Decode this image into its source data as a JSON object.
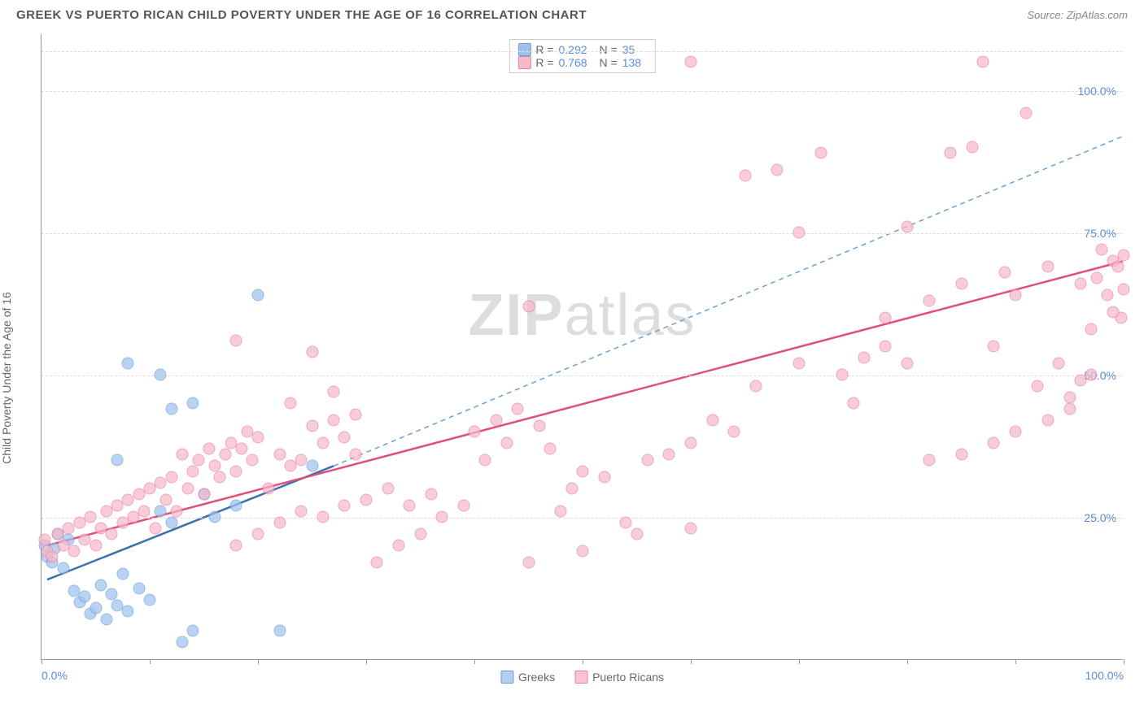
{
  "title": "GREEK VS PUERTO RICAN CHILD POVERTY UNDER THE AGE OF 16 CORRELATION CHART",
  "source_label": "Source:",
  "source_name": "ZipAtlas.com",
  "ylabel": "Child Poverty Under the Age of 16",
  "watermark_bold": "ZIP",
  "watermark_rest": "atlas",
  "chart": {
    "type": "scatter",
    "xlim": [
      0,
      100
    ],
    "ylim": [
      0,
      110
    ],
    "xtick_positions": [
      0,
      10,
      20,
      30,
      40,
      50,
      60,
      70,
      80,
      90,
      100
    ],
    "xtick_labels": {
      "0": "0.0%",
      "100": "100.0%"
    },
    "ytick_positions": [
      25,
      50,
      75,
      100
    ],
    "ytick_labels": [
      "25.0%",
      "50.0%",
      "75.0%",
      "100.0%"
    ],
    "grid_color": "#dddddd",
    "axis_color": "#999999",
    "tick_label_color": "#5b8dd6",
    "background_color": "#ffffff",
    "marker_size": 15,
    "marker_opacity": 0.35,
    "series": [
      {
        "name": "Greeks",
        "fill_color": "#9ec1ed",
        "stroke_color": "#6a9fd8",
        "R": "0.292",
        "N": "35",
        "trend_solid": {
          "x1": 0.5,
          "y1": 14,
          "x2": 27,
          "y2": 34,
          "color": "#3a6fb0",
          "width": 2.5
        },
        "trend_dashed": {
          "x1": 27,
          "y1": 34,
          "x2": 100,
          "y2": 92,
          "color": "#6a9fd8",
          "width": 1.5
        },
        "points": [
          [
            0.3,
            20
          ],
          [
            0.5,
            18
          ],
          [
            1,
            17
          ],
          [
            1.2,
            19.5
          ],
          [
            1.5,
            22
          ],
          [
            2,
            16
          ],
          [
            2.5,
            21
          ],
          [
            3,
            12
          ],
          [
            3.5,
            10
          ],
          [
            4,
            11
          ],
          [
            4.5,
            8
          ],
          [
            5,
            9
          ],
          [
            5.5,
            13
          ],
          [
            6,
            7
          ],
          [
            6.5,
            11.5
          ],
          [
            7,
            9.5
          ],
          [
            7.5,
            15
          ],
          [
            8,
            8.5
          ],
          [
            9,
            12.5
          ],
          [
            10,
            10.5
          ],
          [
            11,
            26
          ],
          [
            12,
            24
          ],
          [
            13,
            3
          ],
          [
            14,
            5
          ],
          [
            15,
            29
          ],
          [
            16,
            25
          ],
          [
            18,
            27
          ],
          [
            11,
            50
          ],
          [
            12,
            44
          ],
          [
            8,
            52
          ],
          [
            7,
            35
          ],
          [
            14,
            45
          ],
          [
            20,
            64
          ],
          [
            22,
            5
          ],
          [
            25,
            34
          ]
        ]
      },
      {
        "name": "Puerto Ricans",
        "fill_color": "#f7b9c8",
        "stroke_color": "#e97fa0",
        "R": "0.768",
        "N": "138",
        "trend_solid": {
          "x1": 0.5,
          "y1": 20,
          "x2": 100,
          "y2": 70,
          "color": "#e04f7a",
          "width": 2.5
        },
        "trend_dashed": null,
        "points": [
          [
            0.3,
            21
          ],
          [
            0.5,
            19
          ],
          [
            1,
            18
          ],
          [
            1.5,
            22
          ],
          [
            2,
            20
          ],
          [
            2.5,
            23
          ],
          [
            3,
            19
          ],
          [
            3.5,
            24
          ],
          [
            4,
            21
          ],
          [
            4.5,
            25
          ],
          [
            5,
            20
          ],
          [
            5.5,
            23
          ],
          [
            6,
            26
          ],
          [
            6.5,
            22
          ],
          [
            7,
            27
          ],
          [
            7.5,
            24
          ],
          [
            8,
            28
          ],
          [
            8.5,
            25
          ],
          [
            9,
            29
          ],
          [
            9.5,
            26
          ],
          [
            10,
            30
          ],
          [
            10.5,
            23
          ],
          [
            11,
            31
          ],
          [
            11.5,
            28
          ],
          [
            12,
            32
          ],
          [
            12.5,
            26
          ],
          [
            13,
            36
          ],
          [
            13.5,
            30
          ],
          [
            14,
            33
          ],
          [
            14.5,
            35
          ],
          [
            15,
            29
          ],
          [
            15.5,
            37
          ],
          [
            16,
            34
          ],
          [
            16.5,
            32
          ],
          [
            17,
            36
          ],
          [
            17.5,
            38
          ],
          [
            18,
            33
          ],
          [
            18.5,
            37
          ],
          [
            19,
            40
          ],
          [
            19.5,
            35
          ],
          [
            20,
            39
          ],
          [
            21,
            30
          ],
          [
            22,
            36
          ],
          [
            23,
            34
          ],
          [
            24,
            35
          ],
          [
            25,
            41
          ],
          [
            26,
            38
          ],
          [
            27,
            42
          ],
          [
            28,
            39
          ],
          [
            29,
            36
          ],
          [
            18,
            20
          ],
          [
            20,
            22
          ],
          [
            22,
            24
          ],
          [
            24,
            26
          ],
          [
            26,
            25
          ],
          [
            28,
            27
          ],
          [
            30,
            28
          ],
          [
            32,
            30
          ],
          [
            34,
            27
          ],
          [
            36,
            29
          ],
          [
            18,
            56
          ],
          [
            25,
            54
          ],
          [
            23,
            45
          ],
          [
            27,
            47
          ],
          [
            29,
            43
          ],
          [
            31,
            17
          ],
          [
            33,
            20
          ],
          [
            35,
            22
          ],
          [
            37,
            25
          ],
          [
            39,
            27
          ],
          [
            40,
            40
          ],
          [
            41,
            35
          ],
          [
            42,
            42
          ],
          [
            43,
            38
          ],
          [
            44,
            44
          ],
          [
            45,
            62
          ],
          [
            46,
            41
          ],
          [
            47,
            37
          ],
          [
            48,
            26
          ],
          [
            49,
            30
          ],
          [
            50,
            33
          ],
          [
            52,
            32
          ],
          [
            54,
            24
          ],
          [
            56,
            35
          ],
          [
            58,
            36
          ],
          [
            60,
            38
          ],
          [
            45,
            17
          ],
          [
            50,
            19
          ],
          [
            55,
            22
          ],
          [
            60,
            23
          ],
          [
            62,
            42
          ],
          [
            64,
            40
          ],
          [
            66,
            48
          ],
          [
            68,
            86
          ],
          [
            70,
            52
          ],
          [
            72,
            89
          ],
          [
            74,
            50
          ],
          [
            76,
            53
          ],
          [
            78,
            55
          ],
          [
            80,
            52
          ],
          [
            60,
            105
          ],
          [
            65,
            85
          ],
          [
            70,
            75
          ],
          [
            75,
            45
          ],
          [
            78,
            60
          ],
          [
            80,
            76
          ],
          [
            82,
            63
          ],
          [
            84,
            89
          ],
          [
            85,
            66
          ],
          [
            86,
            90
          ],
          [
            87,
            105
          ],
          [
            88,
            55
          ],
          [
            89,
            68
          ],
          [
            90,
            64
          ],
          [
            91,
            96
          ],
          [
            92,
            48
          ],
          [
            93,
            69
          ],
          [
            94,
            52
          ],
          [
            95,
            46
          ],
          [
            96,
            66
          ],
          [
            97,
            58
          ],
          [
            97.5,
            67
          ],
          [
            98,
            72
          ],
          [
            98.5,
            64
          ],
          [
            99,
            70
          ],
          [
            99.5,
            69
          ],
          [
            99.8,
            60
          ],
          [
            100,
            65
          ],
          [
            82,
            35
          ],
          [
            85,
            36
          ],
          [
            88,
            38
          ],
          [
            90,
            40
          ],
          [
            93,
            42
          ],
          [
            95,
            44
          ],
          [
            96,
            49
          ],
          [
            97,
            50
          ],
          [
            99,
            61
          ],
          [
            100,
            71
          ]
        ]
      }
    ]
  },
  "legend_bottom": [
    {
      "label": "Greeks",
      "fill": "#b3cef0",
      "border": "#6a9fd8"
    },
    {
      "label": "Puerto Ricans",
      "fill": "#f7c5d2",
      "border": "#e97fa0"
    }
  ]
}
